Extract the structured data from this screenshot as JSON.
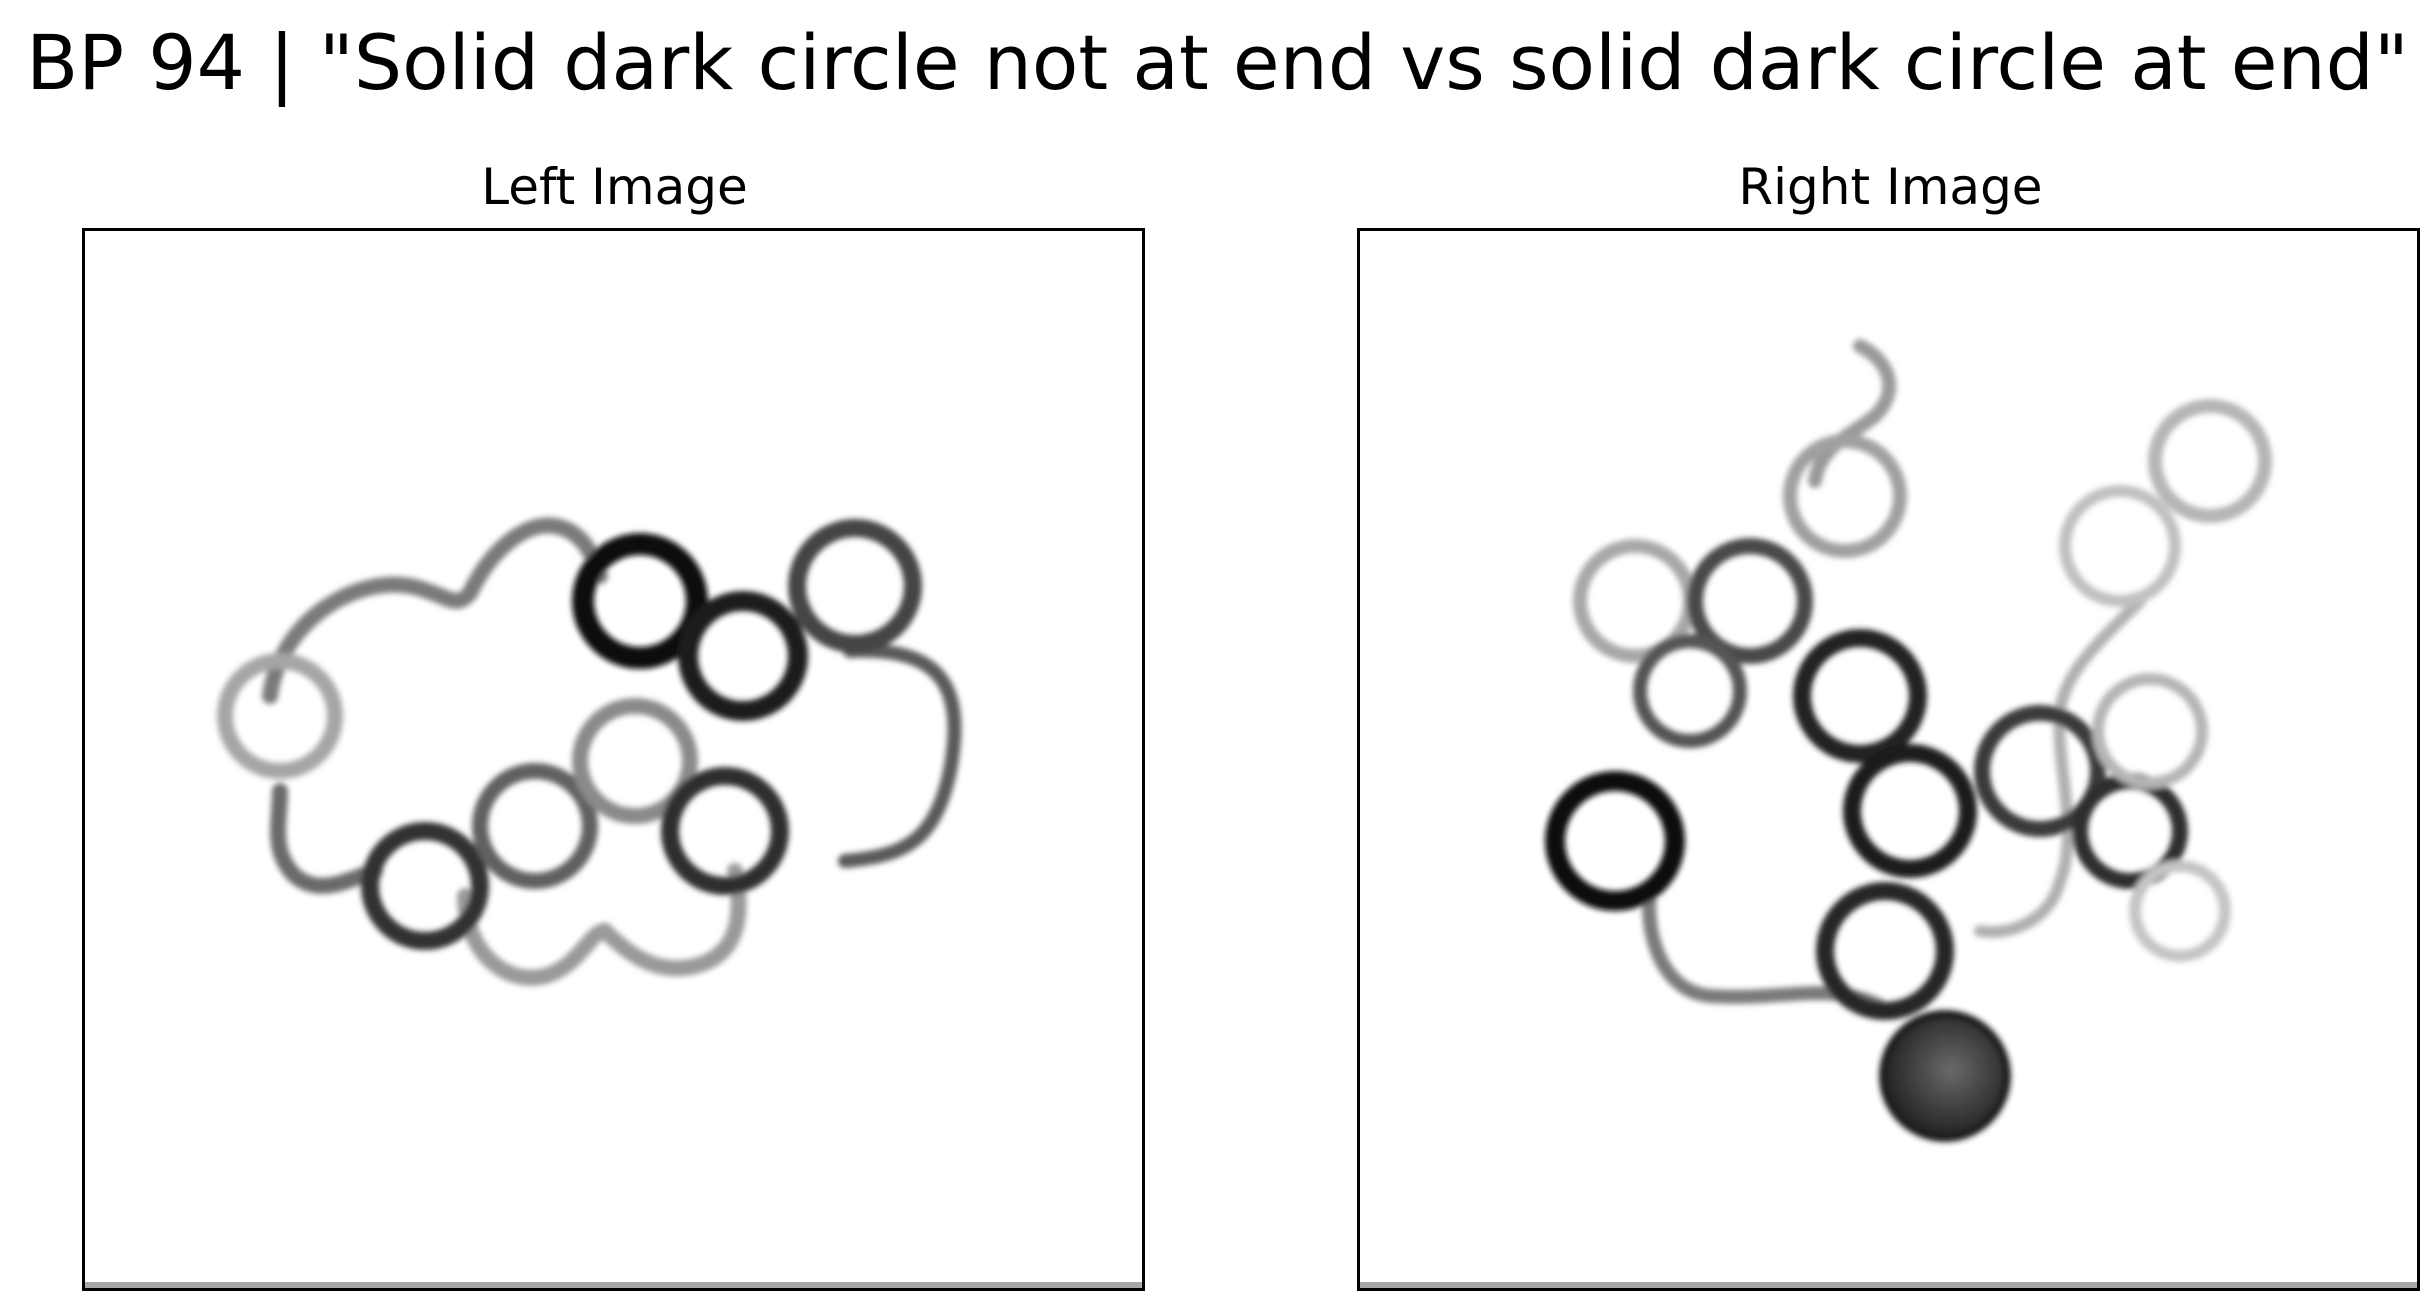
{
  "title": "BP 94 | \"Solid dark circle not at end vs solid dark circle at end\"",
  "panels": {
    "left": {
      "label": "Left Image"
    },
    "right": {
      "label": "Right Image"
    }
  },
  "colors": {
    "background": "#ffffff",
    "frame": "#000000",
    "ink_dark": "#1a1a1a",
    "ink_mid": "#555555",
    "ink_light": "#a6a6a6",
    "solid_circle": "#3a3a3a"
  }
}
